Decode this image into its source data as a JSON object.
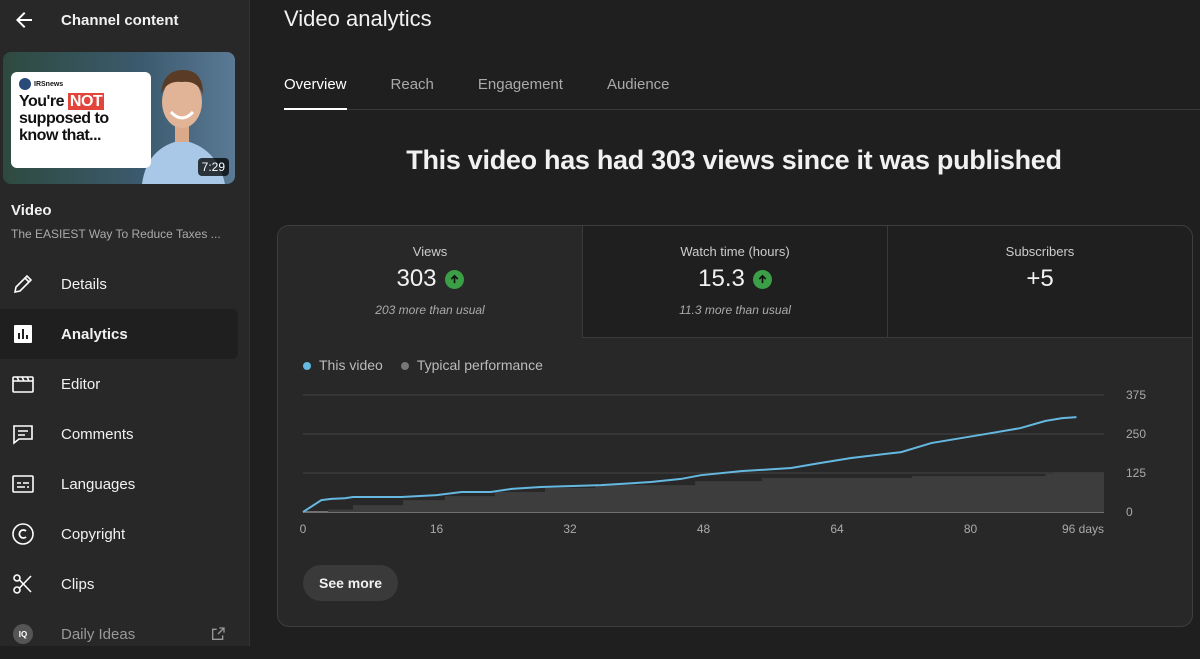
{
  "sidebar": {
    "title": "Channel content",
    "thumbnail": {
      "badge_name": "IRSnews",
      "text_before": "You're",
      "text_highlight": "NOT",
      "text_after": "supposed to know that...",
      "duration": "7:29"
    },
    "video_label": "Video",
    "video_title": "The EASIEST Way To Reduce Taxes ...",
    "items": [
      {
        "label": "Details",
        "icon": "pencil-icon"
      },
      {
        "label": "Analytics",
        "icon": "bar-chart-icon",
        "active": true
      },
      {
        "label": "Editor",
        "icon": "film-icon"
      },
      {
        "label": "Comments",
        "icon": "comment-icon"
      },
      {
        "label": "Languages",
        "icon": "subtitles-icon"
      },
      {
        "label": "Copyright",
        "icon": "copyright-icon"
      },
      {
        "label": "Clips",
        "icon": "scissors-icon"
      },
      {
        "label": "Daily Ideas",
        "icon": "iq-icon",
        "external": true
      }
    ]
  },
  "main": {
    "title": "Video analytics",
    "tabs": [
      {
        "label": "Overview",
        "active": true
      },
      {
        "label": "Reach"
      },
      {
        "label": "Engagement"
      },
      {
        "label": "Audience"
      }
    ],
    "headline": "This video has had 303 views since it was published",
    "metrics": [
      {
        "label": "Views",
        "value": "303",
        "trend": "up",
        "sub": "203 more than usual"
      },
      {
        "label": "Watch time (hours)",
        "value": "15.3",
        "trend": "up",
        "sub": "11.3 more than usual"
      },
      {
        "label": "Subscribers",
        "value": "+5"
      }
    ],
    "see_more": "See more"
  },
  "chart_data": {
    "type": "line",
    "legend": [
      "This video",
      "Typical performance"
    ],
    "legend_position": "top-left",
    "colors": {
      "This video": "#65b8e0",
      "Typical performance": "#3d3d3d"
    },
    "x_ticks": [
      "0",
      "16",
      "32",
      "48",
      "64",
      "80",
      "96 days"
    ],
    "y_ticks": [
      "0",
      "125",
      "250",
      "375"
    ],
    "xlim": [
      0,
      96
    ],
    "ylim": [
      0,
      375
    ],
    "grid": true,
    "series": [
      {
        "name": "This video",
        "points": [
          [
            0,
            0
          ],
          [
            2.2,
            38
          ],
          [
            3.4,
            42
          ],
          [
            5,
            44
          ],
          [
            6,
            48
          ],
          [
            11.8,
            48
          ],
          [
            16,
            54
          ],
          [
            19,
            64
          ],
          [
            22.5,
            64
          ],
          [
            25,
            74
          ],
          [
            28.5,
            80
          ],
          [
            35.7,
            86
          ],
          [
            41.7,
            96
          ],
          [
            45.3,
            106
          ],
          [
            47.7,
            118
          ],
          [
            52.5,
            131
          ],
          [
            58.5,
            141
          ],
          [
            62,
            157
          ],
          [
            65.7,
            173
          ],
          [
            71.7,
            192
          ],
          [
            75.3,
            221
          ],
          [
            78.9,
            237
          ],
          [
            82.5,
            253
          ],
          [
            86,
            269
          ],
          [
            89,
            292
          ],
          [
            91,
            301
          ],
          [
            92.7,
            304
          ]
        ]
      },
      {
        "name": "Typical performance",
        "points": [
          [
            0,
            0
          ],
          [
            3,
            8
          ],
          [
            6,
            22
          ],
          [
            12,
            38
          ],
          [
            17,
            51
          ],
          [
            23,
            64
          ],
          [
            29,
            77
          ],
          [
            35,
            86
          ],
          [
            47,
            99
          ],
          [
            55,
            109
          ],
          [
            73,
            115
          ],
          [
            89,
            122
          ],
          [
            90,
            128
          ],
          [
            96,
            128
          ]
        ]
      }
    ]
  }
}
